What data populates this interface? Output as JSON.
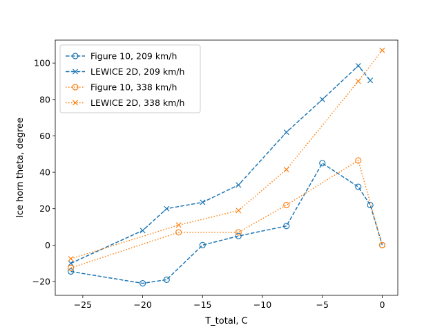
{
  "chart_data": {
    "type": "line",
    "xlabel": "T_total, C",
    "ylabel": "Ice horn theta, degree",
    "xlim": [
      -27.3,
      1.3
    ],
    "ylim": [
      -27.6,
      112.6
    ],
    "xticks": [
      -25,
      -20,
      -15,
      -10,
      -5,
      0
    ],
    "yticks": [
      -20,
      0,
      20,
      40,
      60,
      80,
      100
    ],
    "xtick_labels": [
      "−25",
      "−20",
      "−15",
      "−10",
      "−5",
      "0"
    ],
    "ytick_labels": [
      "−20",
      "0",
      "20",
      "40",
      "60",
      "80",
      "100"
    ],
    "grid": false,
    "legend_position": "top-left",
    "series": [
      {
        "name": "Figure 10, 209 km/h",
        "color": "#1f77b4",
        "linestyle": "dashed",
        "marker": "circle-open",
        "x": [
          -26,
          -20,
          -18,
          -15,
          -12,
          -8,
          -5,
          -2,
          -1,
          0
        ],
        "y": [
          -14.5,
          -21,
          -19,
          0,
          5,
          10.5,
          45,
          32,
          22,
          0
        ]
      },
      {
        "name": "LEWICE 2D, 209 km/h",
        "color": "#1f77b4",
        "linestyle": "dashed",
        "marker": "x",
        "x": [
          -26,
          -20,
          -18,
          -15,
          -12,
          -8,
          -5,
          -2,
          -1
        ],
        "y": [
          -10,
          8,
          20,
          23.5,
          33,
          62,
          80,
          98.5,
          90.5
        ]
      },
      {
        "name": "Figure 10, 338 km/h",
        "color": "#ff7f0e",
        "linestyle": "dotted",
        "marker": "circle-open",
        "x": [
          -26,
          -17,
          -12,
          -8,
          -2,
          0
        ],
        "y": [
          -12.5,
          7,
          7,
          22,
          46.5,
          0
        ]
      },
      {
        "name": "LEWICE 2D, 338 km/h",
        "color": "#ff7f0e",
        "linestyle": "dotted",
        "marker": "x",
        "x": [
          -26,
          -17,
          -12,
          -8,
          -2,
          0
        ],
        "y": [
          -7.5,
          11,
          19,
          41.5,
          90,
          107
        ]
      }
    ]
  }
}
